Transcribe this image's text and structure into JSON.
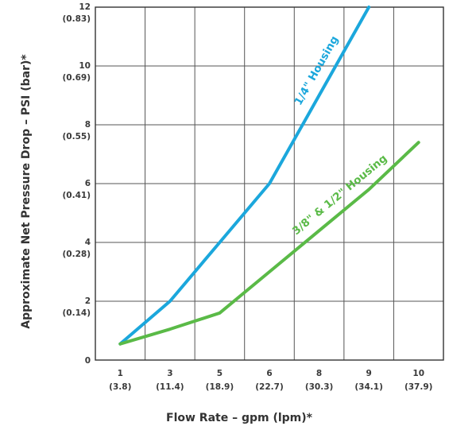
{
  "chart_data": {
    "type": "line",
    "xlabel": "Flow Rate – gpm (lpm)*",
    "ylabel": "Approximate Net Pressure Drop – PSI (bar)*",
    "x_ticks": [
      {
        "gpm": "1",
        "lpm": "(3.8)"
      },
      {
        "gpm": "3",
        "lpm": "(11.4)"
      },
      {
        "gpm": "5",
        "lpm": "(18.9)"
      },
      {
        "gpm": "6",
        "lpm": "(22.7)"
      },
      {
        "gpm": "8",
        "lpm": "(30.3)"
      },
      {
        "gpm": "9",
        "lpm": "(34.1)"
      },
      {
        "gpm": "10",
        "lpm": "(37.9)"
      }
    ],
    "y_ticks": [
      {
        "psi": "0",
        "bar": ""
      },
      {
        "psi": "2",
        "bar": "(0.14)"
      },
      {
        "psi": "4",
        "bar": "(0.28)"
      },
      {
        "psi": "6",
        "bar": "(0.41)"
      },
      {
        "psi": "8",
        "bar": "(0.55)"
      },
      {
        "psi": "10",
        "bar": "(0.69)"
      },
      {
        "psi": "12",
        "bar": "(0.83)"
      }
    ],
    "ylim": [
      0,
      12
    ],
    "grid": true,
    "series": [
      {
        "name": "1/4\" Housing",
        "color": "#1ba7dc",
        "x_index": [
          0,
          1,
          2,
          3,
          4,
          5
        ],
        "values": [
          0.55,
          2.0,
          4.0,
          6.0,
          9.0,
          12.0
        ]
      },
      {
        "name": "3/8\" & 1/2\" Housing",
        "color": "#5aba47",
        "x_index": [
          0,
          1,
          2,
          3,
          4,
          5,
          6
        ],
        "values": [
          0.55,
          1.05,
          1.6,
          3.0,
          4.4,
          5.8,
          7.4
        ]
      }
    ]
  }
}
